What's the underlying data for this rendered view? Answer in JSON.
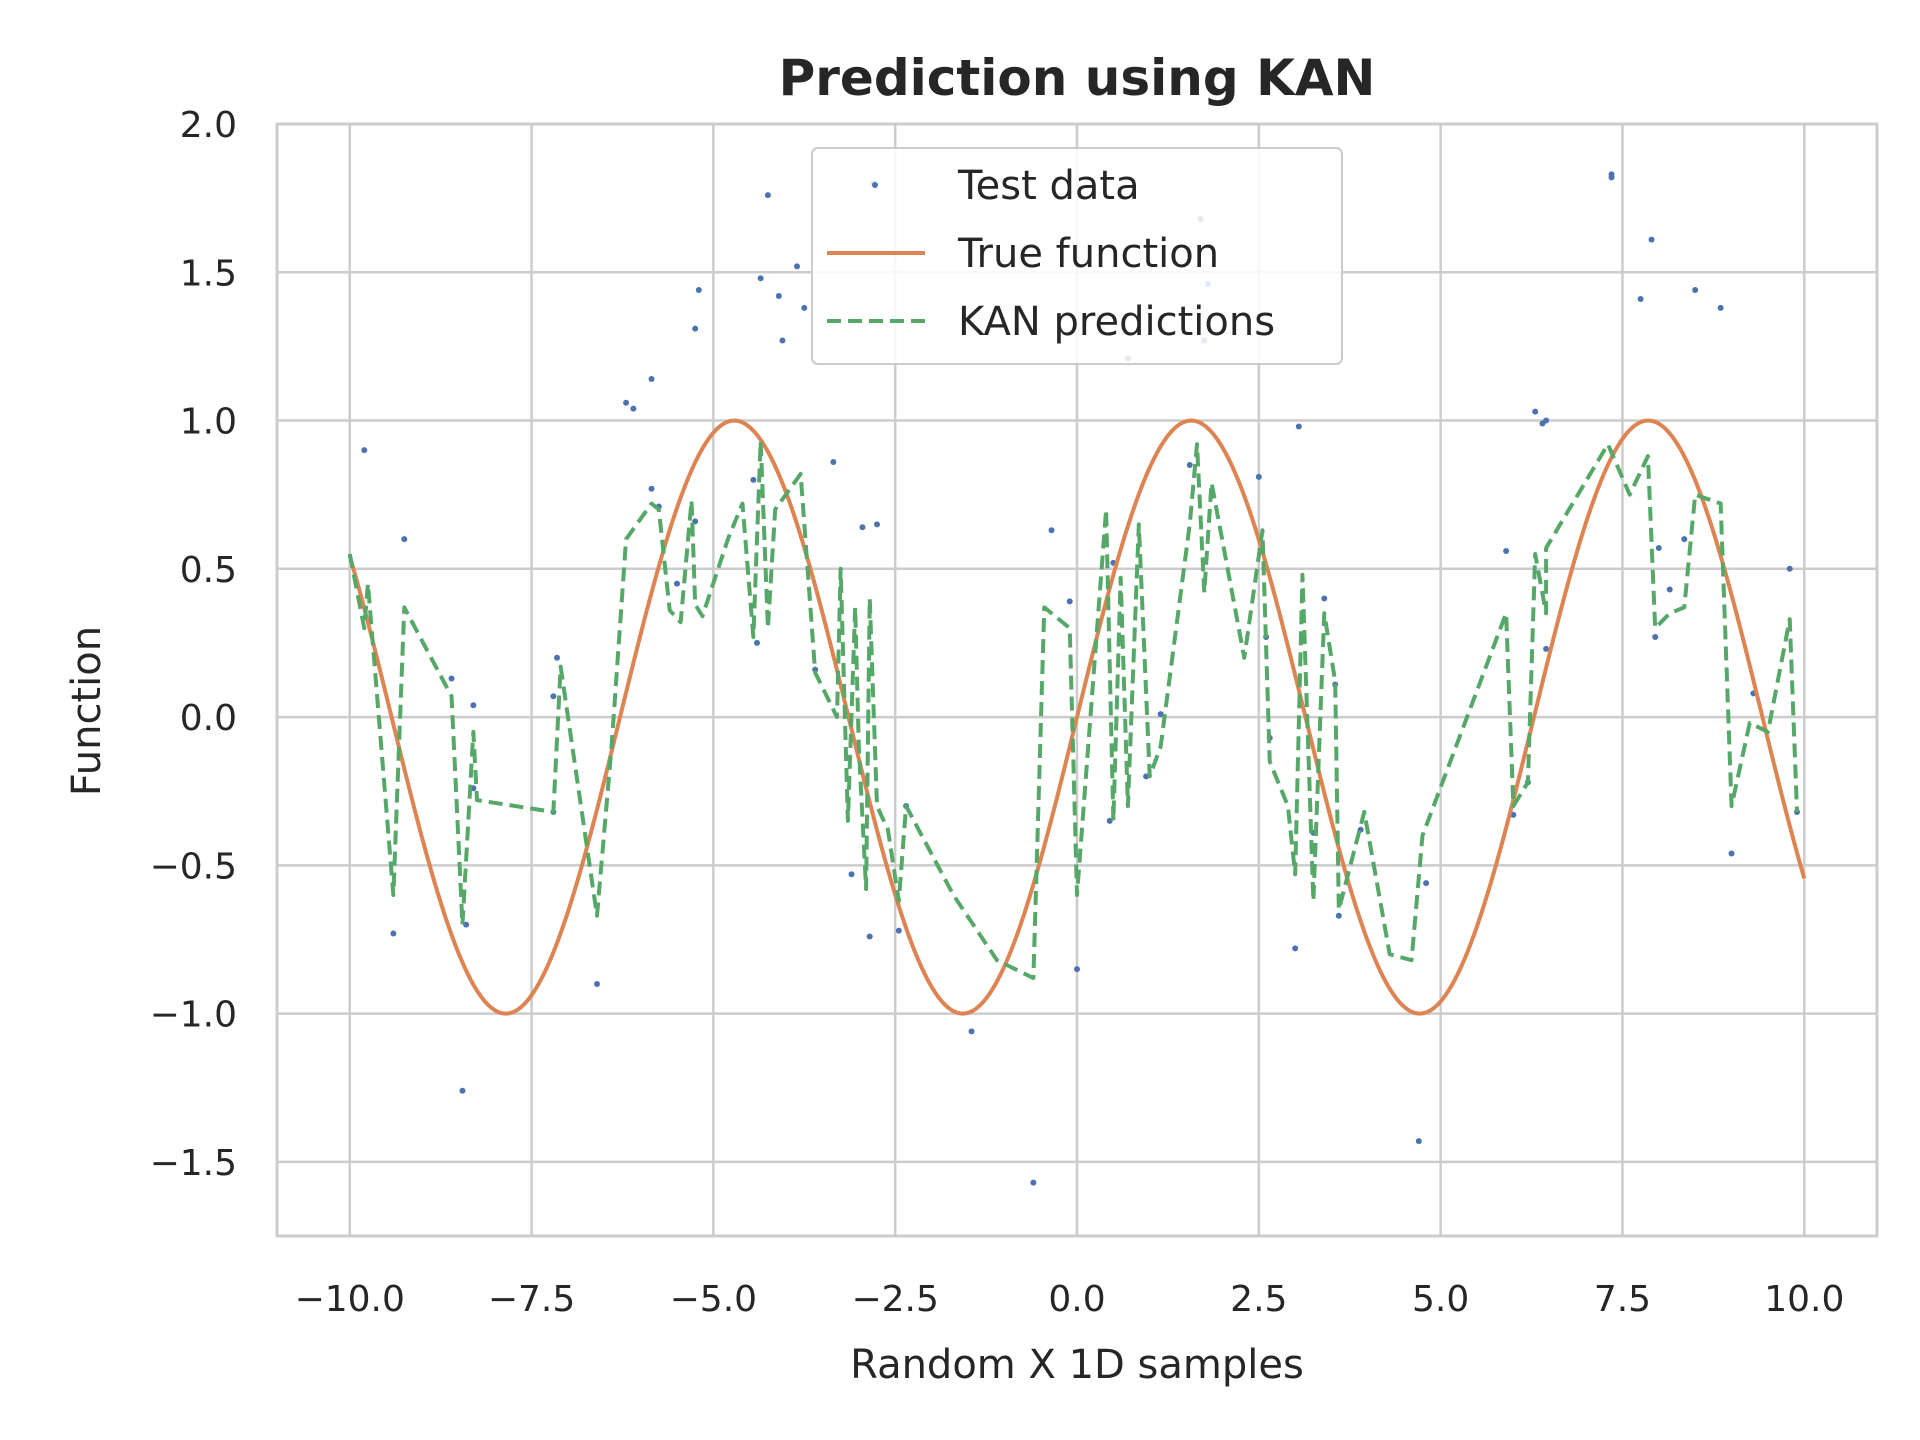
{
  "chart_data": {
    "type": "line",
    "title": "Prediction using KAN",
    "xlabel": "Random X 1D samples",
    "ylabel": "Function",
    "xlim": [
      -11,
      11
    ],
    "ylim": [
      -1.75,
      2.0
    ],
    "xticks": [
      -10,
      -7.5,
      -5,
      -2.5,
      0,
      2.5,
      5,
      7.5,
      10
    ],
    "xtick_labels": [
      "−10.0",
      "−7.5",
      "−5.0",
      "−2.5",
      "0.0",
      "2.5",
      "5.0",
      "7.5",
      "10.0"
    ],
    "yticks": [
      -1.5,
      -1.0,
      -0.5,
      0.0,
      0.5,
      1.0,
      1.5,
      2.0
    ],
    "ytick_labels": [
      "−1.5",
      "−1.0",
      "−0.5",
      "0.0",
      "0.5",
      "1.0",
      "1.5",
      "2.0"
    ],
    "grid": true,
    "legend_position": "top-center",
    "colors": {
      "test": "#4c72b0",
      "true": "#dd8452",
      "kan": "#55a868",
      "grid": "#cccccc"
    },
    "series": [
      {
        "name": "Test data",
        "kind": "scatter",
        "points": [
          [
            -9.8,
            0.9
          ],
          [
            -9.4,
            -0.73
          ],
          [
            -9.25,
            0.6
          ],
          [
            -8.6,
            0.13
          ],
          [
            -8.45,
            -1.26
          ],
          [
            -8.4,
            -0.7
          ],
          [
            -8.3,
            0.04
          ],
          [
            -8.3,
            -0.24
          ],
          [
            -7.2,
            -0.32
          ],
          [
            -7.2,
            0.07
          ],
          [
            -7.15,
            0.2
          ],
          [
            -6.6,
            -0.9
          ],
          [
            -6.2,
            1.06
          ],
          [
            -6.1,
            1.04
          ],
          [
            -5.85,
            1.14
          ],
          [
            -5.85,
            0.77
          ],
          [
            -5.75,
            0.71
          ],
          [
            -5.5,
            0.45
          ],
          [
            -5.25,
            1.31
          ],
          [
            -5.2,
            1.44
          ],
          [
            -5.25,
            0.66
          ],
          [
            -4.45,
            0.8
          ],
          [
            -4.4,
            0.25
          ],
          [
            -4.35,
            1.48
          ],
          [
            -4.25,
            1.76
          ],
          [
            -4.1,
            1.42
          ],
          [
            -4.05,
            1.27
          ],
          [
            -3.85,
            1.52
          ],
          [
            -3.75,
            1.38
          ],
          [
            -3.6,
            0.16
          ],
          [
            -3.35,
            0.86
          ],
          [
            -3.1,
            -0.53
          ],
          [
            -2.95,
            0.64
          ],
          [
            -2.85,
            -0.74
          ],
          [
            -2.75,
            0.65
          ],
          [
            -2.8,
            1.8
          ],
          [
            -2.45,
            -0.72
          ],
          [
            -2.35,
            -0.3
          ],
          [
            -1.45,
            -1.06
          ],
          [
            -0.6,
            -1.57
          ],
          [
            -0.35,
            0.63
          ],
          [
            -0.1,
            0.39
          ],
          [
            0.0,
            -0.85
          ],
          [
            0.45,
            -0.35
          ],
          [
            0.5,
            0.52
          ],
          [
            0.7,
            1.21
          ],
          [
            0.95,
            -0.2
          ],
          [
            1.15,
            0.01
          ],
          [
            1.55,
            0.85
          ],
          [
            1.7,
            1.68
          ],
          [
            1.75,
            1.27
          ],
          [
            1.8,
            1.46
          ],
          [
            2.5,
            0.81
          ],
          [
            2.6,
            0.27
          ],
          [
            2.65,
            -0.07
          ],
          [
            3.0,
            -0.78
          ],
          [
            3.05,
            0.98
          ],
          [
            3.25,
            -0.39
          ],
          [
            3.4,
            0.4
          ],
          [
            3.55,
            0.11
          ],
          [
            3.6,
            -0.67
          ],
          [
            3.9,
            -0.38
          ],
          [
            4.7,
            -1.43
          ],
          [
            4.8,
            -0.56
          ],
          [
            5.9,
            0.56
          ],
          [
            6.0,
            -0.33
          ],
          [
            6.2,
            -0.22
          ],
          [
            6.3,
            1.03
          ],
          [
            6.4,
            0.99
          ],
          [
            6.45,
            0.23
          ],
          [
            6.45,
            1.0
          ],
          [
            7.35,
            1.82
          ],
          [
            7.35,
            1.83
          ],
          [
            7.75,
            1.41
          ],
          [
            7.9,
            1.61
          ],
          [
            7.95,
            0.27
          ],
          [
            8.0,
            0.57
          ],
          [
            8.15,
            0.43
          ],
          [
            8.35,
            0.6
          ],
          [
            8.5,
            1.44
          ],
          [
            8.85,
            1.38
          ],
          [
            9.0,
            -0.46
          ],
          [
            9.3,
            0.08
          ],
          [
            9.8,
            0.5
          ],
          [
            9.9,
            -0.32
          ]
        ]
      },
      {
        "name": "True function",
        "kind": "line",
        "function": "sin(x)",
        "x_range": [
          -10,
          10
        ]
      },
      {
        "name": "KAN predictions",
        "kind": "line",
        "points": [
          [
            -10.0,
            0.55
          ],
          [
            -9.8,
            0.3
          ],
          [
            -9.75,
            0.45
          ],
          [
            -9.4,
            -0.6
          ],
          [
            -9.25,
            0.37
          ],
          [
            -8.6,
            0.07
          ],
          [
            -8.45,
            -0.7
          ],
          [
            -8.3,
            -0.05
          ],
          [
            -8.25,
            -0.28
          ],
          [
            -7.2,
            -0.32
          ],
          [
            -7.1,
            0.17
          ],
          [
            -6.6,
            -0.67
          ],
          [
            -6.4,
            -0.1
          ],
          [
            -6.2,
            0.6
          ],
          [
            -5.85,
            0.72
          ],
          [
            -5.75,
            0.7
          ],
          [
            -5.6,
            0.36
          ],
          [
            -5.45,
            0.32
          ],
          [
            -5.3,
            0.73
          ],
          [
            -5.25,
            0.38
          ],
          [
            -5.15,
            0.34
          ],
          [
            -4.8,
            0.6
          ],
          [
            -4.6,
            0.72
          ],
          [
            -4.45,
            0.27
          ],
          [
            -4.35,
            0.93
          ],
          [
            -4.25,
            0.3
          ],
          [
            -4.15,
            0.7
          ],
          [
            -3.8,
            0.82
          ],
          [
            -3.6,
            0.15
          ],
          [
            -3.3,
            0.0
          ],
          [
            -3.25,
            0.5
          ],
          [
            -3.15,
            -0.35
          ],
          [
            -3.05,
            0.37
          ],
          [
            -3.0,
            -0.1
          ],
          [
            -2.9,
            -0.58
          ],
          [
            -2.85,
            0.4
          ],
          [
            -2.75,
            -0.3
          ],
          [
            -2.6,
            -0.38
          ],
          [
            -2.45,
            -0.62
          ],
          [
            -2.35,
            -0.3
          ],
          [
            -1.7,
            -0.6
          ],
          [
            -1.1,
            -0.82
          ],
          [
            -0.6,
            -0.88
          ],
          [
            -0.45,
            0.37
          ],
          [
            -0.1,
            0.3
          ],
          [
            0.0,
            -0.6
          ],
          [
            0.4,
            0.7
          ],
          [
            0.5,
            -0.35
          ],
          [
            0.6,
            0.47
          ],
          [
            0.7,
            -0.3
          ],
          [
            0.85,
            0.65
          ],
          [
            1.0,
            -0.2
          ],
          [
            1.15,
            -0.1
          ],
          [
            1.55,
            0.65
          ],
          [
            1.65,
            0.92
          ],
          [
            1.75,
            0.42
          ],
          [
            1.85,
            0.79
          ],
          [
            2.3,
            0.2
          ],
          [
            2.55,
            0.63
          ],
          [
            2.65,
            -0.15
          ],
          [
            2.9,
            -0.3
          ],
          [
            3.0,
            -0.53
          ],
          [
            3.1,
            0.48
          ],
          [
            3.25,
            -0.62
          ],
          [
            3.4,
            0.35
          ],
          [
            3.55,
            0.12
          ],
          [
            3.6,
            -0.65
          ],
          [
            3.95,
            -0.32
          ],
          [
            4.3,
            -0.8
          ],
          [
            4.6,
            -0.82
          ],
          [
            4.75,
            -0.4
          ],
          [
            5.9,
            0.35
          ],
          [
            6.0,
            -0.3
          ],
          [
            6.2,
            -0.22
          ],
          [
            6.3,
            0.55
          ],
          [
            6.45,
            0.35
          ],
          [
            6.45,
            0.57
          ],
          [
            7.3,
            0.92
          ],
          [
            7.6,
            0.75
          ],
          [
            7.85,
            0.88
          ],
          [
            7.95,
            0.3
          ],
          [
            8.15,
            0.35
          ],
          [
            8.35,
            0.37
          ],
          [
            8.5,
            0.75
          ],
          [
            8.85,
            0.72
          ],
          [
            9.0,
            -0.3
          ],
          [
            9.25,
            -0.02
          ],
          [
            9.5,
            -0.05
          ],
          [
            9.8,
            0.33
          ],
          [
            9.9,
            -0.32
          ]
        ]
      }
    ]
  }
}
